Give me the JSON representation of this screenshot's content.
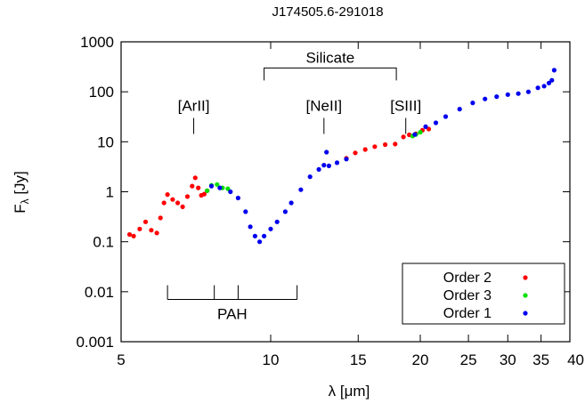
{
  "chart_data": {
    "type": "scatter",
    "title": "J174505.6-291018",
    "xlabel": "λ [μm]",
    "ylabel": "Fλ [Jy]",
    "ylabel_main": "F",
    "ylabel_sub": "λ",
    "ylabel_unit": " [Jy]",
    "x_scale": "log",
    "y_scale": "log",
    "xlim": [
      5,
      40
    ],
    "ylim": [
      0.001,
      1000
    ],
    "x_ticks": [
      {
        "value": 5,
        "label": "5"
      },
      {
        "value": 10,
        "label": "10"
      },
      {
        "value": 15,
        "label": "15"
      },
      {
        "value": 20,
        "label": "20"
      },
      {
        "value": 25,
        "label": "25"
      },
      {
        "value": 30,
        "label": "30"
      },
      {
        "value": 35,
        "label": "35"
      },
      {
        "value": 40,
        "label": "40"
      }
    ],
    "y_ticks": [
      {
        "value": 0.001,
        "label": "0.001"
      },
      {
        "value": 0.01,
        "label": "0.01"
      },
      {
        "value": 0.1,
        "label": "0.1"
      },
      {
        "value": 1,
        "label": "1"
      },
      {
        "value": 10,
        "label": "10"
      },
      {
        "value": 100,
        "label": "100"
      },
      {
        "value": 1000,
        "label": "1000"
      }
    ],
    "grid": false,
    "legend_position": "bottom-right",
    "series": [
      {
        "name": "Order 2",
        "color": "#ff0000",
        "points": [
          [
            5.2,
            0.14
          ],
          [
            5.3,
            0.13
          ],
          [
            5.45,
            0.18
          ],
          [
            5.6,
            0.25
          ],
          [
            5.75,
            0.17
          ],
          [
            5.9,
            0.15
          ],
          [
            6.0,
            0.3
          ],
          [
            6.1,
            0.6
          ],
          [
            6.2,
            0.88
          ],
          [
            6.35,
            0.7
          ],
          [
            6.5,
            0.6
          ],
          [
            6.65,
            0.5
          ],
          [
            6.8,
            0.8
          ],
          [
            6.95,
            1.3
          ],
          [
            7.05,
            1.9
          ],
          [
            7.15,
            1.2
          ],
          [
            7.25,
            0.85
          ],
          [
            7.35,
            0.9
          ],
          [
            7.45,
            1.05
          ],
          [
            14.2,
            4.7
          ],
          [
            14.8,
            6.0
          ],
          [
            15.5,
            7.0
          ],
          [
            16.2,
            8.0
          ],
          [
            17.0,
            8.8
          ],
          [
            17.8,
            9.0
          ],
          [
            18.5,
            12.5
          ],
          [
            19.0,
            13.8
          ],
          [
            19.6,
            14.5
          ],
          [
            20.2,
            17.0
          ],
          [
            20.8,
            18.0
          ]
        ]
      },
      {
        "name": "Order 3",
        "color": "#00e000",
        "points": [
          [
            7.45,
            1.05
          ],
          [
            7.6,
            1.35
          ],
          [
            7.8,
            1.4
          ],
          [
            8.0,
            1.2
          ],
          [
            8.2,
            1.15
          ],
          [
            19.3,
            13.0
          ],
          [
            19.6,
            14.0
          ],
          [
            20.0,
            15.5
          ]
        ]
      },
      {
        "name": "Order 1",
        "color": "#0000ee",
        "points": [
          [
            7.6,
            1.3
          ],
          [
            7.9,
            1.2
          ],
          [
            8.3,
            1.0
          ],
          [
            8.6,
            0.75
          ],
          [
            8.9,
            0.4
          ],
          [
            9.1,
            0.2
          ],
          [
            9.3,
            0.13
          ],
          [
            9.5,
            0.1
          ],
          [
            9.7,
            0.13
          ],
          [
            10.0,
            0.18
          ],
          [
            10.3,
            0.25
          ],
          [
            10.7,
            0.4
          ],
          [
            11.0,
            0.6
          ],
          [
            11.5,
            1.1
          ],
          [
            12.0,
            2.0
          ],
          [
            12.5,
            2.8
          ],
          [
            12.8,
            3.4
          ],
          [
            12.95,
            6.2
          ],
          [
            13.1,
            3.3
          ],
          [
            13.6,
            3.8
          ],
          [
            14.2,
            4.5
          ],
          [
            19.5,
            14.0
          ],
          [
            20.5,
            20.0
          ],
          [
            21.5,
            24.0
          ],
          [
            22.5,
            32.0
          ],
          [
            24.0,
            45.0
          ],
          [
            25.5,
            60.0
          ],
          [
            27.0,
            72.0
          ],
          [
            28.5,
            80.0
          ],
          [
            30.0,
            88.0
          ],
          [
            31.5,
            92.0
          ],
          [
            33.0,
            100.0
          ],
          [
            34.5,
            120.0
          ],
          [
            35.5,
            130.0
          ],
          [
            36.3,
            150.0
          ],
          [
            36.8,
            170.0
          ],
          [
            37.2,
            270.0
          ]
        ]
      }
    ],
    "annotations": {
      "silicate": {
        "label": "Silicate",
        "x_start": 9.7,
        "x_end": 17.9,
        "y": 300
      },
      "lines": [
        {
          "label": "[ArII]",
          "x": 7.0,
          "y": 30
        },
        {
          "label": "[NeII]",
          "x": 12.8,
          "y": 30
        },
        {
          "label": "[SIII]",
          "x": 18.7,
          "y": 30
        }
      ],
      "pah": {
        "label": "PAH",
        "ticks": [
          6.2,
          7.7,
          8.6,
          11.3
        ],
        "y": 0.007
      }
    }
  }
}
